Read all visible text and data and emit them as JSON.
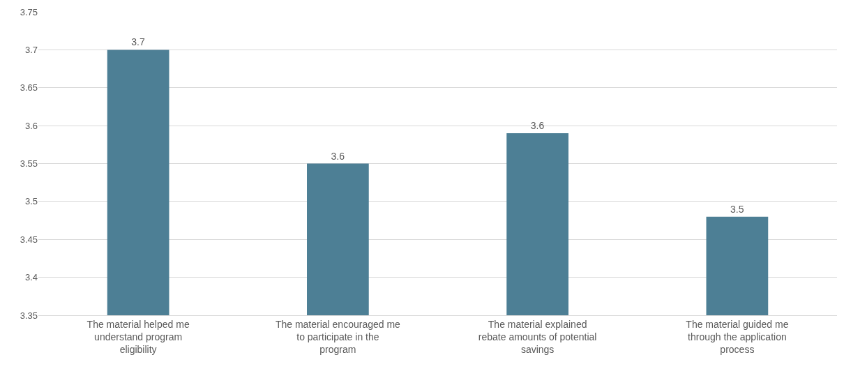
{
  "chart_data": {
    "type": "bar",
    "categories": [
      "The material helped me understand program eligibility",
      "The material encouraged me to participate in the program",
      "The material explained rebate amounts of potential savings",
      "The material guided me through the application process"
    ],
    "values": [
      3.7,
      3.55,
      3.59,
      3.48
    ],
    "value_labels": [
      "3.7",
      "3.6",
      "3.6",
      "3.5"
    ],
    "color": "#4d7f95",
    "ylim": [
      3.35,
      3.75
    ],
    "yticks": [
      3.35,
      3.4,
      3.45,
      3.5,
      3.55,
      3.6,
      3.65,
      3.7,
      3.75
    ],
    "grid": "y"
  }
}
